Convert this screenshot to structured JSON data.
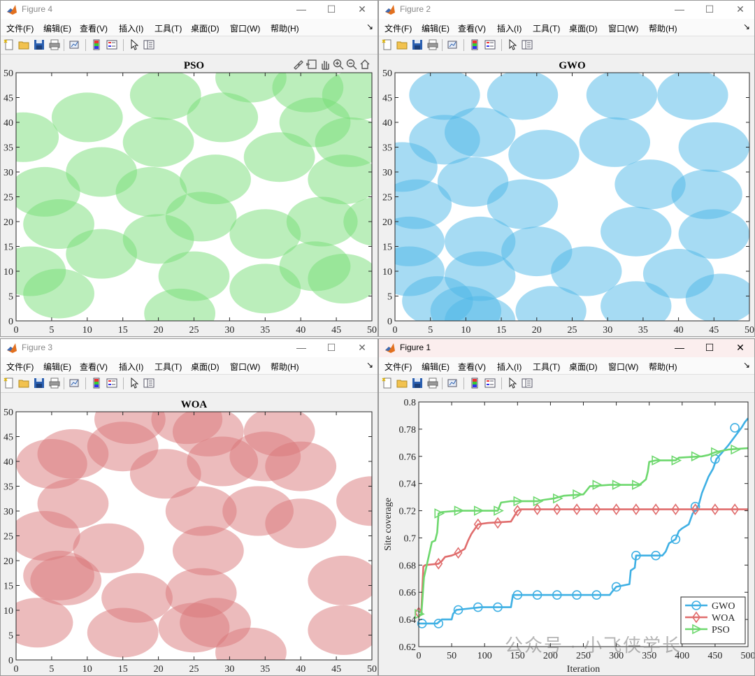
{
  "menu_labels": [
    "文件(F)",
    "编辑(E)",
    "查看(V)",
    "插入(I)",
    "工具(T)",
    "桌面(D)",
    "窗口(W)",
    "帮助(H)"
  ],
  "window_controls": {
    "minimize": "—",
    "maximize": "☐",
    "close": "✕"
  },
  "toolbar_icons": [
    "new-figure-icon",
    "open-file-icon",
    "save-icon",
    "print-icon",
    "link-plot-icon",
    "colorbar-icon",
    "legend-icon",
    "edit-plot-arrow-icon",
    "property-inspector-icon"
  ],
  "axes_toolbar_icons": [
    "brush-icon",
    "data-tips-icon",
    "pan-icon",
    "zoom-in-icon",
    "zoom-out-icon",
    "home-icon"
  ],
  "watermark_text": "公众号 · 小飞侠学长",
  "figures": {
    "fig4": {
      "title": "Figure 4"
    },
    "fig2": {
      "title": "Figure 2"
    },
    "fig3": {
      "title": "Figure 3"
    },
    "fig1": {
      "title": "Figure 1"
    }
  },
  "colors": {
    "pso": "#77dd77",
    "gwo": "#4db8e8",
    "woa": "#d9777a",
    "line_gwo": "#3fb0e4",
    "line_woa": "#e06d6d",
    "line_pso": "#6ed86e"
  },
  "chart_data": [
    {
      "id": "pso",
      "type": "scatter",
      "title": "PSO",
      "xlim": [
        0,
        50
      ],
      "ylim": [
        0,
        50
      ],
      "xticks": [
        0,
        5,
        10,
        15,
        20,
        25,
        30,
        35,
        40,
        45,
        50
      ],
      "yticks": [
        0,
        5,
        10,
        15,
        20,
        25,
        30,
        35,
        40,
        45,
        50
      ],
      "radius": 5,
      "color": "#77dd77",
      "centers": [
        [
          21,
          45.5
        ],
        [
          33,
          49
        ],
        [
          41,
          47
        ],
        [
          48,
          45.5
        ],
        [
          10,
          41
        ],
        [
          29,
          41
        ],
        [
          1,
          37
        ],
        [
          42,
          40
        ],
        [
          20,
          36
        ],
        [
          37,
          33
        ],
        [
          47,
          36
        ],
        [
          12,
          30
        ],
        [
          28,
          28.5
        ],
        [
          46,
          28.5
        ],
        [
          4,
          26
        ],
        [
          19,
          26
        ],
        [
          26,
          21
        ],
        [
          6,
          19.5
        ],
        [
          35,
          17.5
        ],
        [
          43,
          20
        ],
        [
          51,
          20
        ],
        [
          20,
          16.5
        ],
        [
          12,
          13.5
        ],
        [
          2,
          10
        ],
        [
          42,
          11
        ],
        [
          25,
          9
        ],
        [
          35,
          6.5
        ],
        [
          46,
          8.5
        ],
        [
          6,
          5.5
        ],
        [
          23,
          1.5
        ]
      ]
    },
    {
      "id": "gwo",
      "type": "scatter",
      "title": "GWO",
      "xlim": [
        0,
        50
      ],
      "ylim": [
        0,
        50
      ],
      "xticks": [
        0,
        5,
        10,
        15,
        20,
        25,
        30,
        35,
        40,
        45,
        50
      ],
      "yticks": [
        0,
        5,
        10,
        15,
        20,
        25,
        30,
        35,
        40,
        45,
        50
      ],
      "radius": 5,
      "color": "#4db8e8",
      "centers": [
        [
          7,
          45.5
        ],
        [
          18,
          45.5
        ],
        [
          32,
          45.5
        ],
        [
          42,
          45.5
        ],
        [
          7,
          36.5
        ],
        [
          12,
          38
        ],
        [
          1,
          31
        ],
        [
          11,
          28
        ],
        [
          21,
          33.5
        ],
        [
          31,
          36
        ],
        [
          45,
          35
        ],
        [
          3,
          23.5
        ],
        [
          18,
          23.5
        ],
        [
          36,
          27.5
        ],
        [
          44,
          25.5
        ],
        [
          2,
          16
        ],
        [
          12,
          16
        ],
        [
          20,
          14
        ],
        [
          34,
          18
        ],
        [
          45,
          17.5
        ],
        [
          2,
          10
        ],
        [
          12,
          9
        ],
        [
          27,
          10
        ],
        [
          40,
          9.5
        ],
        [
          6,
          4
        ],
        [
          10,
          2
        ],
        [
          22,
          2
        ],
        [
          34,
          3
        ],
        [
          46,
          4.5
        ],
        [
          12,
          0
        ]
      ]
    },
    {
      "id": "woa",
      "type": "scatter",
      "title": "WOA",
      "xlim": [
        0,
        50
      ],
      "ylim": [
        0,
        50
      ],
      "xticks": [
        0,
        5,
        10,
        15,
        20,
        25,
        30,
        35,
        40,
        45,
        50
      ],
      "yticks": [
        0,
        5,
        10,
        15,
        20,
        25,
        30,
        35,
        40,
        45,
        50
      ],
      "radius": 5,
      "color": "#d9777a",
      "centers": [
        [
          16,
          48.5
        ],
        [
          24,
          48.5
        ],
        [
          27,
          46
        ],
        [
          37,
          46
        ],
        [
          8,
          41.5
        ],
        [
          15,
          43
        ],
        [
          5,
          39.5
        ],
        [
          21,
          37.5
        ],
        [
          29,
          40
        ],
        [
          35,
          41
        ],
        [
          40,
          39
        ],
        [
          8,
          31.5
        ],
        [
          26,
          30
        ],
        [
          34,
          30
        ],
        [
          40,
          27.5
        ],
        [
          50,
          32
        ],
        [
          4,
          25
        ],
        [
          13,
          22.5
        ],
        [
          27,
          22
        ],
        [
          6,
          17
        ],
        [
          7,
          16
        ],
        [
          17,
          12.5
        ],
        [
          26,
          13.5
        ],
        [
          46,
          16
        ],
        [
          3,
          7.5
        ],
        [
          15,
          5.5
        ],
        [
          25,
          6.5
        ],
        [
          28,
          7.5
        ],
        [
          46,
          6
        ],
        [
          33,
          1.5
        ]
      ]
    },
    {
      "id": "convergence",
      "type": "line",
      "xlabel": "Iteration",
      "ylabel": "Site coverage",
      "xlim": [
        0,
        500
      ],
      "ylim": [
        0.62,
        0.8
      ],
      "xticks": [
        0,
        50,
        100,
        150,
        200,
        250,
        300,
        350,
        400,
        450,
        500
      ],
      "yticks": [
        0.62,
        0.64,
        0.66,
        0.68,
        0.7,
        0.72,
        0.74,
        0.76,
        0.78,
        0.8
      ],
      "legend_position": "bottom-right",
      "series": [
        {
          "name": "GWO",
          "marker": "circle",
          "color": "#3fb0e4",
          "points": [
            [
              0,
              0.637
            ],
            [
              28,
              0.637
            ],
            [
              35,
              0.64
            ],
            [
              50,
              0.64
            ],
            [
              52,
              0.644
            ],
            [
              57,
              0.647
            ],
            [
              95,
              0.649
            ],
            [
              140,
              0.649
            ],
            [
              143,
              0.658
            ],
            [
              290,
              0.658
            ],
            [
              293,
              0.66
            ],
            [
              300,
              0.664
            ],
            [
              320,
              0.666
            ],
            [
              322,
              0.676
            ],
            [
              328,
              0.678
            ],
            [
              330,
              0.687
            ],
            [
              370,
              0.687
            ],
            [
              375,
              0.69
            ],
            [
              380,
              0.696
            ],
            [
              390,
              0.699
            ],
            [
              395,
              0.705
            ],
            [
              400,
              0.707
            ],
            [
              410,
              0.71
            ],
            [
              416,
              0.718
            ],
            [
              420,
              0.72
            ],
            [
              425,
              0.724
            ],
            [
              430,
              0.733
            ],
            [
              440,
              0.745
            ],
            [
              447,
              0.751
            ],
            [
              452,
              0.758
            ],
            [
              470,
              0.768
            ],
            [
              490,
              0.781
            ],
            [
              495,
              0.785
            ],
            [
              500,
              0.788
            ]
          ],
          "markers_at": [
            [
              5,
              0.637
            ],
            [
              30,
              0.637
            ],
            [
              60,
              0.647
            ],
            [
              90,
              0.649
            ],
            [
              120,
              0.649
            ],
            [
              150,
              0.658
            ],
            [
              180,
              0.658
            ],
            [
              210,
              0.658
            ],
            [
              240,
              0.658
            ],
            [
              270,
              0.658
            ],
            [
              300,
              0.664
            ],
            [
              330,
              0.687
            ],
            [
              360,
              0.687
            ],
            [
              390,
              0.699
            ],
            [
              420,
              0.723
            ],
            [
              450,
              0.758
            ],
            [
              480,
              0.781
            ]
          ]
        },
        {
          "name": "WOA",
          "marker": "diamond",
          "color": "#e06d6d",
          "points": [
            [
              0,
              0.645
            ],
            [
              4,
              0.647
            ],
            [
              7,
              0.679
            ],
            [
              10,
              0.68
            ],
            [
              30,
              0.681
            ],
            [
              35,
              0.683
            ],
            [
              40,
              0.686
            ],
            [
              50,
              0.687
            ],
            [
              60,
              0.689
            ],
            [
              70,
              0.692
            ],
            [
              75,
              0.698
            ],
            [
              80,
              0.703
            ],
            [
              90,
              0.71
            ],
            [
              105,
              0.711
            ],
            [
              140,
              0.712
            ],
            [
              145,
              0.716
            ],
            [
              150,
              0.72
            ],
            [
              155,
              0.721
            ],
            [
              500,
              0.721
            ]
          ],
          "markers_at": [
            [
              0,
              0.645
            ],
            [
              30,
              0.681
            ],
            [
              60,
              0.689
            ],
            [
              90,
              0.71
            ],
            [
              120,
              0.711
            ],
            [
              150,
              0.72
            ],
            [
              180,
              0.721
            ],
            [
              210,
              0.721
            ],
            [
              240,
              0.721
            ],
            [
              270,
              0.721
            ],
            [
              300,
              0.721
            ],
            [
              330,
              0.721
            ],
            [
              360,
              0.721
            ],
            [
              390,
              0.721
            ],
            [
              420,
              0.721
            ],
            [
              450,
              0.721
            ],
            [
              480,
              0.721
            ]
          ]
        },
        {
          "name": "PSO",
          "marker": "triangle-right",
          "color": "#6ed86e",
          "points": [
            [
              0,
              0.643
            ],
            [
              4,
              0.644
            ],
            [
              8,
              0.671
            ],
            [
              15,
              0.686
            ],
            [
              20,
              0.697
            ],
            [
              25,
              0.698
            ],
            [
              28,
              0.704
            ],
            [
              30,
              0.718
            ],
            [
              35,
              0.719
            ],
            [
              60,
              0.72
            ],
            [
              120,
              0.72
            ],
            [
              125,
              0.726
            ],
            [
              140,
              0.727
            ],
            [
              180,
              0.727
            ],
            [
              190,
              0.728
            ],
            [
              205,
              0.729
            ],
            [
              220,
              0.731
            ],
            [
              250,
              0.732
            ],
            [
              255,
              0.735
            ],
            [
              260,
              0.738
            ],
            [
              290,
              0.739
            ],
            [
              335,
              0.739
            ],
            [
              340,
              0.741
            ],
            [
              345,
              0.743
            ],
            [
              348,
              0.749
            ],
            [
              350,
              0.756
            ],
            [
              360,
              0.757
            ],
            [
              390,
              0.757
            ],
            [
              395,
              0.759
            ],
            [
              430,
              0.76
            ],
            [
              440,
              0.761
            ],
            [
              450,
              0.763
            ],
            [
              470,
              0.765
            ],
            [
              500,
              0.766
            ]
          ],
          "markers_at": [
            [
              0,
              0.644
            ],
            [
              30,
              0.718
            ],
            [
              60,
              0.72
            ],
            [
              90,
              0.72
            ],
            [
              120,
              0.72
            ],
            [
              150,
              0.727
            ],
            [
              180,
              0.727
            ],
            [
              210,
              0.729
            ],
            [
              240,
              0.732
            ],
            [
              270,
              0.739
            ],
            [
              300,
              0.739
            ],
            [
              330,
              0.739
            ],
            [
              360,
              0.757
            ],
            [
              390,
              0.757
            ],
            [
              420,
              0.76
            ],
            [
              450,
              0.763
            ],
            [
              480,
              0.765
            ]
          ]
        }
      ]
    }
  ]
}
